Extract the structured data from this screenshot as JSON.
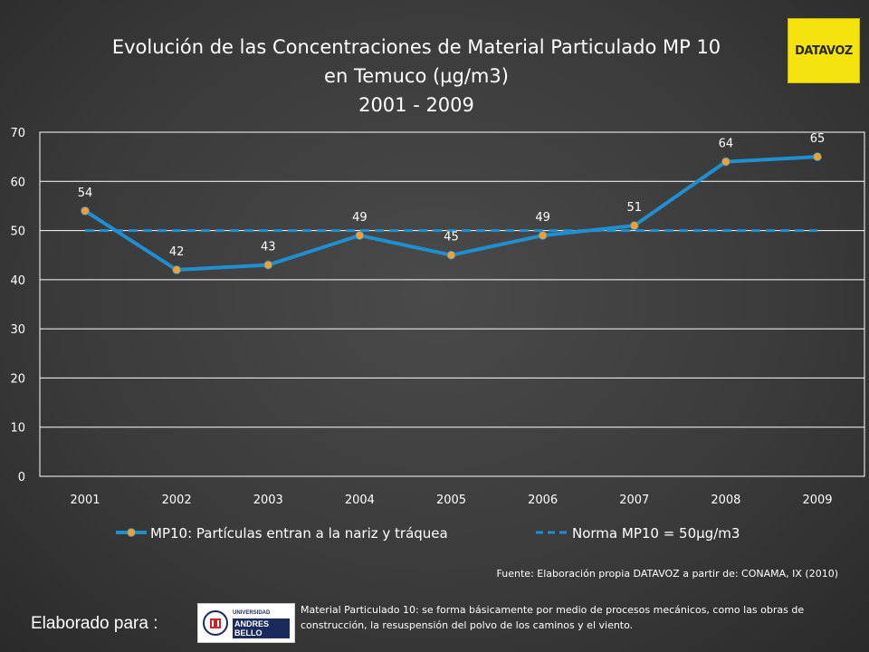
{
  "header": {
    "title_line1": "Evolución de las Concentraciones de Material Particulado MP 10",
    "title_line2": "en Temuco (µg/m3)",
    "title_line3": "2001 - 2009",
    "logo_text": "DATAVOZ"
  },
  "chart_data": {
    "type": "line",
    "categories": [
      "2001",
      "2002",
      "2003",
      "2004",
      "2005",
      "2006",
      "2007",
      "2008",
      "2009"
    ],
    "series": [
      {
        "name": "MP10: Partículas entran a la nariz y tráquea",
        "values": [
          54,
          42,
          43,
          49,
          45,
          49,
          51,
          64,
          65
        ],
        "color": "#1f8fd0",
        "marker_color": "#f0a030",
        "style": "solid",
        "data_labels": true
      },
      {
        "name": "Norma MP10 = 50µg/m3",
        "values": [
          50,
          50,
          50,
          50,
          50,
          50,
          50,
          50,
          50
        ],
        "color": "#1f8fd0",
        "style": "dashed",
        "data_labels": false
      }
    ],
    "ylim": [
      0,
      70
    ],
    "yticks": [
      0,
      10,
      20,
      30,
      40,
      50,
      60,
      70
    ],
    "grid": true,
    "legend": "bottom"
  },
  "footer": {
    "source": "Fuente:   Elaboración propia DATAVOZ a partir de: CONAMA, IX (2010)",
    "made_for": "Elaborado para :",
    "uab_small": "UNIVERSIDAD",
    "uab_big": "ANDRES BELLO",
    "note": "Material Particulado 10: se forma básicamente por medio de procesos mecánicos, como las obras de construcción, la resuspensión del polvo de los caminos y el viento."
  },
  "colors": {
    "background": "#3d3d3d",
    "grid": "#ffffff",
    "text": "#ffffff",
    "logo_yellow": "#f4e30f"
  }
}
